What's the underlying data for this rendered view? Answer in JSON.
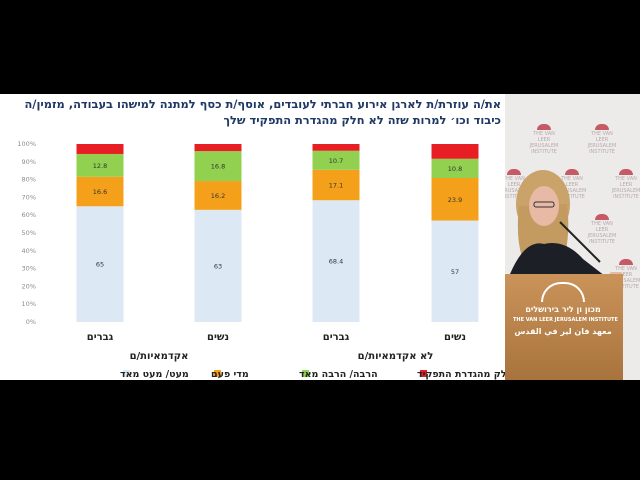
{
  "slide": {
    "title": "את/ה עוזרת/ת לארגן אירוע חברתי לעובדים, אוסף/ת כסף למתנה למישהו בעבודה, מזמין/ה כיבוד וכו׳ למרות שזה לא חלק מהגדרת התפקיד שלך",
    "accent_colors": {
      "title": "#1f3864"
    }
  },
  "chart_data": {
    "type": "bar",
    "stacked": true,
    "ylim": [
      0,
      100
    ],
    "y_ticks": [
      "0%",
      "10%",
      "20%",
      "30%",
      "40%",
      "50%",
      "60%",
      "70%",
      "80%",
      "90%",
      "100%"
    ],
    "categories": [
      "גברים",
      "נשים",
      "גברים",
      "נשים"
    ],
    "groups": [
      "אקדמאיות/ם",
      "לא אקדמאיות/ם"
    ],
    "series": [
      {
        "name": "מעט/ מעט מאד",
        "color": "#dce9f5",
        "values": [
          65,
          63,
          68.4,
          57
        ],
        "labels": [
          "65",
          "63",
          "68.4",
          "57"
        ]
      },
      {
        "name": "מדי פעם",
        "color": "#f5a01a",
        "values": [
          16.6,
          16.2,
          17.1,
          23.9
        ],
        "labels": [
          "16.6",
          "16.2",
          "17.1",
          "23.9"
        ]
      },
      {
        "name": "הרבה/ הרבה מאד",
        "color": "#92d050",
        "values": [
          12.8,
          16.8,
          10.7,
          10.8
        ],
        "labels": [
          "12.8",
          "16.8",
          "10.7",
          "10.8"
        ]
      },
      {
        "name": "חלק מהגדרת התפקיד",
        "color": "#e81e25",
        "values": [
          5.6,
          4,
          3.8,
          8.3
        ],
        "labels": [
          "",
          "",
          "",
          ""
        ]
      }
    ],
    "legend_position": "bottom",
    "grid": false
  },
  "room": {
    "logo_small": "THE VAN LEER JERUSALEM INSTITUTE",
    "podium_line1": "מכון ון ליר בירושלים",
    "podium_line2": "THE VAN LEER JERUSALEM INSTITUTE",
    "podium_line3": "معهد فان لير في القدس"
  }
}
